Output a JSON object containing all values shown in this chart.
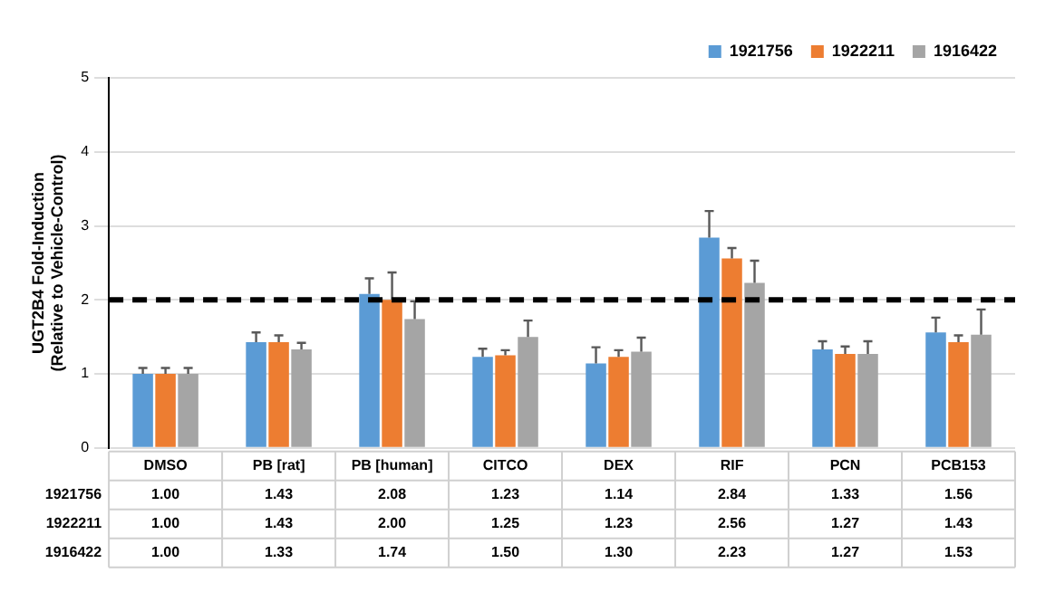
{
  "chart_data": {
    "type": "bar",
    "ylabel": "UGT2B4 Fold-Induction\n(Relative to Vehicle-Control)",
    "categories": [
      "DMSO",
      "PB [rat]",
      "PB [human]",
      "CITCO",
      "DEX",
      "RIF",
      "PCN",
      "PCB153"
    ],
    "series": [
      {
        "name": "1921756",
        "color": "#5b9bd5",
        "values": [
          1.0,
          1.43,
          2.08,
          1.23,
          1.14,
          2.84,
          1.33,
          1.56
        ],
        "value_labels": [
          "1.00",
          "1.43",
          "2.08",
          "1.23",
          "1.14",
          "2.84",
          "1.33",
          "1.56"
        ],
        "errors": [
          [
            1.0,
            1.08
          ],
          [
            1.43,
            1.56
          ],
          [
            2.08,
            2.29
          ],
          [
            1.23,
            1.34
          ],
          [
            1.14,
            1.36
          ],
          [
            2.84,
            3.2
          ],
          [
            1.33,
            1.44
          ],
          [
            1.56,
            1.76
          ]
        ]
      },
      {
        "name": "1922211",
        "color": "#ed7d31",
        "values": [
          1.0,
          1.43,
          2.0,
          1.25,
          1.23,
          2.56,
          1.27,
          1.43
        ],
        "value_labels": [
          "1.00",
          "1.43",
          "2.00",
          "1.25",
          "1.23",
          "2.56",
          "1.27",
          "1.43"
        ],
        "errors": [
          [
            1.0,
            1.08
          ],
          [
            1.43,
            1.52
          ],
          [
            2.0,
            2.37
          ],
          [
            1.25,
            1.32
          ],
          [
            1.23,
            1.32
          ],
          [
            2.56,
            2.7
          ],
          [
            1.27,
            1.37
          ],
          [
            1.43,
            1.52
          ]
        ]
      },
      {
        "name": "1916422",
        "color": "#a5a5a5",
        "values": [
          1.0,
          1.33,
          1.74,
          1.5,
          1.3,
          2.23,
          1.27,
          1.53
        ],
        "value_labels": [
          "1.00",
          "1.33",
          "1.74",
          "1.50",
          "1.30",
          "2.23",
          "1.27",
          "1.53"
        ],
        "errors": [
          [
            1.0,
            1.08
          ],
          [
            1.33,
            1.42
          ],
          [
            1.74,
            1.98
          ],
          [
            1.5,
            1.72
          ],
          [
            1.3,
            1.49
          ],
          [
            2.23,
            2.53
          ],
          [
            1.27,
            1.44
          ],
          [
            1.53,
            1.87
          ]
        ]
      }
    ],
    "ylim": [
      0,
      5
    ],
    "yticks": [
      0,
      1,
      2,
      3,
      4,
      5
    ],
    "grid": "y",
    "legend": "top right",
    "ref_lines": [
      {
        "axis": "y",
        "value": 2,
        "color": "#000000",
        "line_style": "dashed"
      }
    ]
  }
}
